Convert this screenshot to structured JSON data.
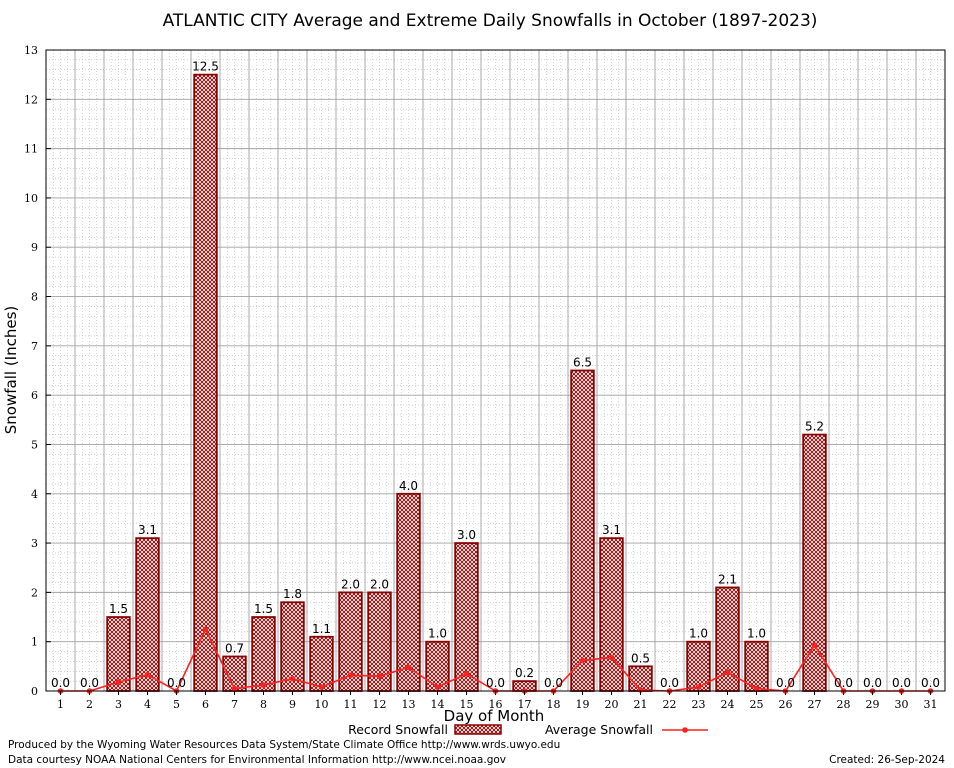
{
  "chart_data": {
    "type": "bar",
    "title": "ATLANTIC CITY Average and Extreme Daily Snowfalls in October (1897-2023)",
    "xlabel": "Day of Month",
    "ylabel": "Snowfall (Inches)",
    "ylim": [
      0,
      13
    ],
    "yticks": [
      "0",
      "1",
      "2",
      "3",
      "4",
      "5",
      "6",
      "7",
      "8",
      "9",
      "10",
      "11",
      "12",
      "13"
    ],
    "categories": [
      "1",
      "2",
      "3",
      "4",
      "5",
      "6",
      "7",
      "8",
      "9",
      "10",
      "11",
      "12",
      "13",
      "14",
      "15",
      "16",
      "17",
      "18",
      "19",
      "20",
      "21",
      "22",
      "23",
      "24",
      "25",
      "26",
      "27",
      "28",
      "29",
      "30",
      "31"
    ],
    "series": [
      {
        "name": "Record Snowfall",
        "type": "bar",
        "color": "#8b0000",
        "values": [
          0.0,
          0.0,
          1.5,
          3.1,
          0.0,
          12.5,
          0.7,
          1.5,
          1.8,
          1.1,
          2.0,
          2.0,
          4.0,
          1.0,
          3.0,
          0.0,
          0.2,
          0.0,
          6.5,
          3.1,
          0.5,
          0.0,
          1.0,
          2.1,
          1.0,
          0.0,
          5.2,
          0.0,
          0.0,
          0.0,
          0.0
        ],
        "labels": [
          "0.0",
          "0.0",
          "1.5",
          "3.1",
          "0.0",
          "12.5",
          "0.7",
          "1.5",
          "1.8",
          "1.1",
          "2.0",
          "2.0",
          "4.0",
          "1.0",
          "3.0",
          "0.0",
          "0.2",
          "0.0",
          "6.5",
          "3.1",
          "0.5",
          "0.0",
          "1.0",
          "2.1",
          "1.0",
          "0.0",
          "5.2",
          "0.0",
          "0.0",
          "0.0",
          "0.0"
        ]
      },
      {
        "name": "Average Snowfall",
        "type": "line",
        "color": "#ff2020",
        "values": [
          0.0,
          0.0,
          0.18,
          0.33,
          0.0,
          1.25,
          0.05,
          0.12,
          0.25,
          0.08,
          0.32,
          0.3,
          0.48,
          0.08,
          0.35,
          0.0,
          0.0,
          0.0,
          0.62,
          0.68,
          0.02,
          0.0,
          0.08,
          0.38,
          0.05,
          0.0,
          0.93,
          0.0,
          0.0,
          0.0,
          0.0
        ]
      }
    ],
    "grid": true,
    "legend": "bottom-center"
  },
  "footer": {
    "produced_by": "Produced by the Wyoming Water Resources Data System/State Climate Office http://www.wrds.uwyo.edu",
    "courtesy": "Data courtesy NOAA National Centers for Environmental Information http://www.ncei.noaa.gov",
    "created": "Created:  26-Sep-2024"
  }
}
